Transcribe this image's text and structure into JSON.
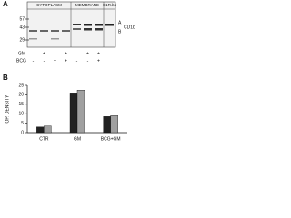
{
  "panel_a": {
    "label": "A",
    "groups": [
      "CYTOPLASM",
      "MEMBRANE",
      "C1R.b6"
    ],
    "markers": [
      "57",
      "43",
      "29"
    ],
    "band_labels": [
      "A",
      "B"
    ],
    "protein": "CD1b",
    "row_labels": [
      "GM",
      "BCG"
    ],
    "gm": [
      "-",
      "+",
      "-",
      "+",
      "-",
      "+",
      "+"
    ],
    "bcg": [
      "-",
      "-",
      "+",
      "+",
      "-",
      "-",
      "+"
    ]
  },
  "chart_data": {
    "type": "bar",
    "label": "B",
    "y_label": "OP. DENSITY",
    "categories": [
      "CTR",
      "GM",
      "BCG+GM"
    ],
    "series": [
      {
        "color": "#222222",
        "values": [
          3,
          21,
          8.5
        ]
      },
      {
        "color": "#a0a0a0",
        "values": [
          3.5,
          22.5,
          9
        ]
      }
    ],
    "ylim": [
      0,
      25
    ],
    "yticks": [
      0,
      5,
      10,
      15,
      20,
      25
    ]
  }
}
